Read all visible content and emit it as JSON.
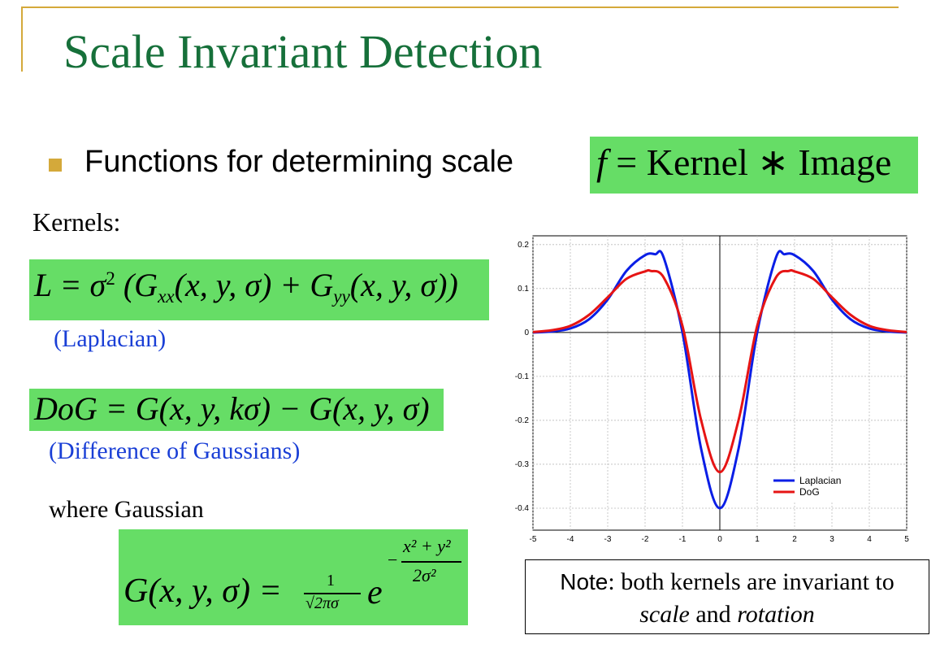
{
  "slide": {
    "title": "Scale Invariant Detection",
    "bullet": "Functions for determining scale",
    "formula_f": {
      "lhs": "f",
      "eq": " = Kernel ∗ Image"
    },
    "kernels_label": "Kernels:",
    "laplacian": {
      "formula_a": "L",
      "formula_b": " = σ",
      "formula_sup": "2",
      "formula_c": " (G",
      "sub_xx": "xx",
      "formula_d": "(x, y, σ) + G",
      "sub_yy": "yy",
      "formula_e": "(x, y, σ))",
      "caption": "(Laplacian)"
    },
    "dog": {
      "formula_a": "DoG",
      "formula_b": " = G(x, y, kσ) − G(x, y, σ)",
      "caption": "(Difference of Gaussians)"
    },
    "where_label": "where Gaussian",
    "gaussian": {
      "lhs": "G(x, y, σ) =",
      "frac_num": "1",
      "frac_den": "√2πσ",
      "e": "e",
      "exp_minus": "−",
      "exp_num": "x² + y²",
      "exp_den": "2σ²"
    },
    "note": {
      "label": "Note",
      "line1_rest": ": both kernels are invariant to",
      "line2_a": "scale",
      "line2_b": " and ",
      "line2_c": "rotation"
    }
  },
  "chart_data": {
    "type": "line",
    "x_ticks": [
      "-5",
      "-4",
      "-3",
      "-2",
      "-1",
      "0",
      "1",
      "2",
      "3",
      "4",
      "5"
    ],
    "y_ticks": [
      "0.2",
      "0.1",
      "0",
      "-0.1",
      "-0.2",
      "-0.3",
      "-0.4"
    ],
    "xlim": [
      -5,
      5
    ],
    "ylim": [
      -0.45,
      0.22
    ],
    "grid": true,
    "legend_position": "bottom-right",
    "series": [
      {
        "name": "Laplacian",
        "color": "#0a1ee6",
        "x": [
          -5,
          -4.5,
          -4,
          -3.5,
          -3,
          -2.5,
          -2,
          -1.73,
          -1.5,
          -1,
          -0.5,
          0,
          0.5,
          1,
          1.5,
          1.73,
          2,
          2.5,
          3,
          3.5,
          4,
          4.5,
          5
        ],
        "y": [
          0.0,
          0.002,
          0.009,
          0.03,
          0.075,
          0.14,
          0.176,
          0.178,
          0.17,
          0.0,
          -0.265,
          -0.4,
          -0.265,
          0.0,
          0.17,
          0.178,
          0.176,
          0.14,
          0.075,
          0.03,
          0.009,
          0.002,
          0.0
        ]
      },
      {
        "name": "DoG",
        "color": "#e61414",
        "x": [
          -5,
          -4.5,
          -4,
          -3.5,
          -3,
          -2.5,
          -2,
          -1.85,
          -1.5,
          -1,
          -0.5,
          0,
          0.5,
          1,
          1.5,
          1.85,
          2,
          2.5,
          3,
          3.5,
          4,
          4.5,
          5
        ],
        "y": [
          0.001,
          0.005,
          0.015,
          0.04,
          0.08,
          0.122,
          0.139,
          0.14,
          0.125,
          0.015,
          -0.2,
          -0.318,
          -0.2,
          0.015,
          0.125,
          0.14,
          0.139,
          0.122,
          0.08,
          0.04,
          0.015,
          0.005,
          0.001
        ]
      }
    ]
  }
}
